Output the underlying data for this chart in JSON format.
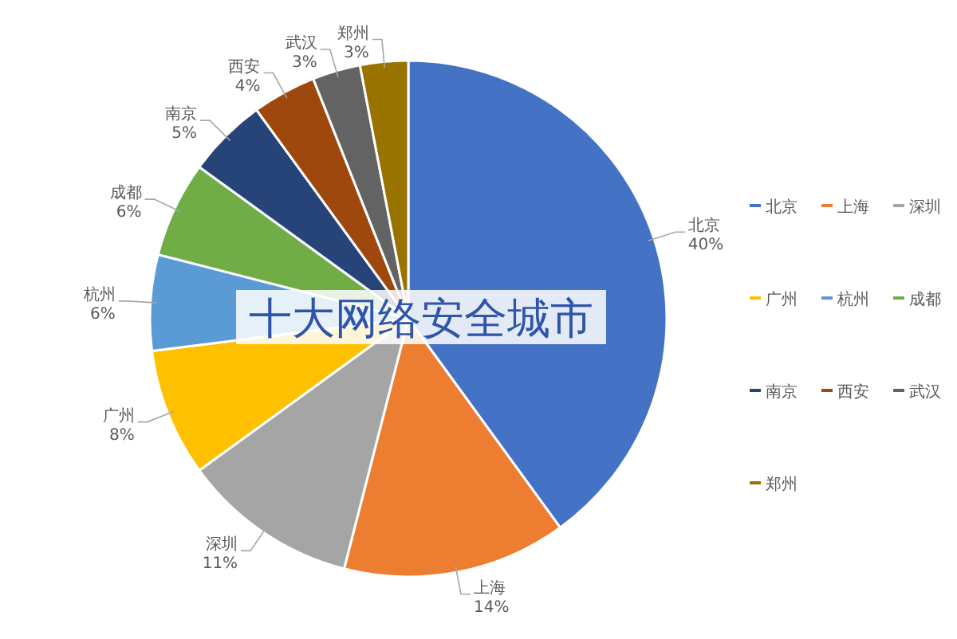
{
  "chart_data": {
    "type": "pie",
    "title": "十大网络安全城市",
    "categories": [
      "北京",
      "上海",
      "深圳",
      "广州",
      "杭州",
      "成都",
      "南京",
      "西安",
      "武汉",
      "郑州"
    ],
    "values": [
      40,
      14,
      11,
      8,
      6,
      6,
      5,
      4,
      3,
      3
    ],
    "colors": [
      "#4472c4",
      "#ed7d31",
      "#a5a5a5",
      "#ffc000",
      "#5b9bd5",
      "#70ad47",
      "#264478",
      "#9e480e",
      "#636363",
      "#997300"
    ],
    "value_labels": [
      "40%",
      "14%",
      "11%",
      "8%",
      "6%",
      "6%",
      "5%",
      "4%",
      "3%",
      "3%"
    ],
    "legend": "right"
  }
}
